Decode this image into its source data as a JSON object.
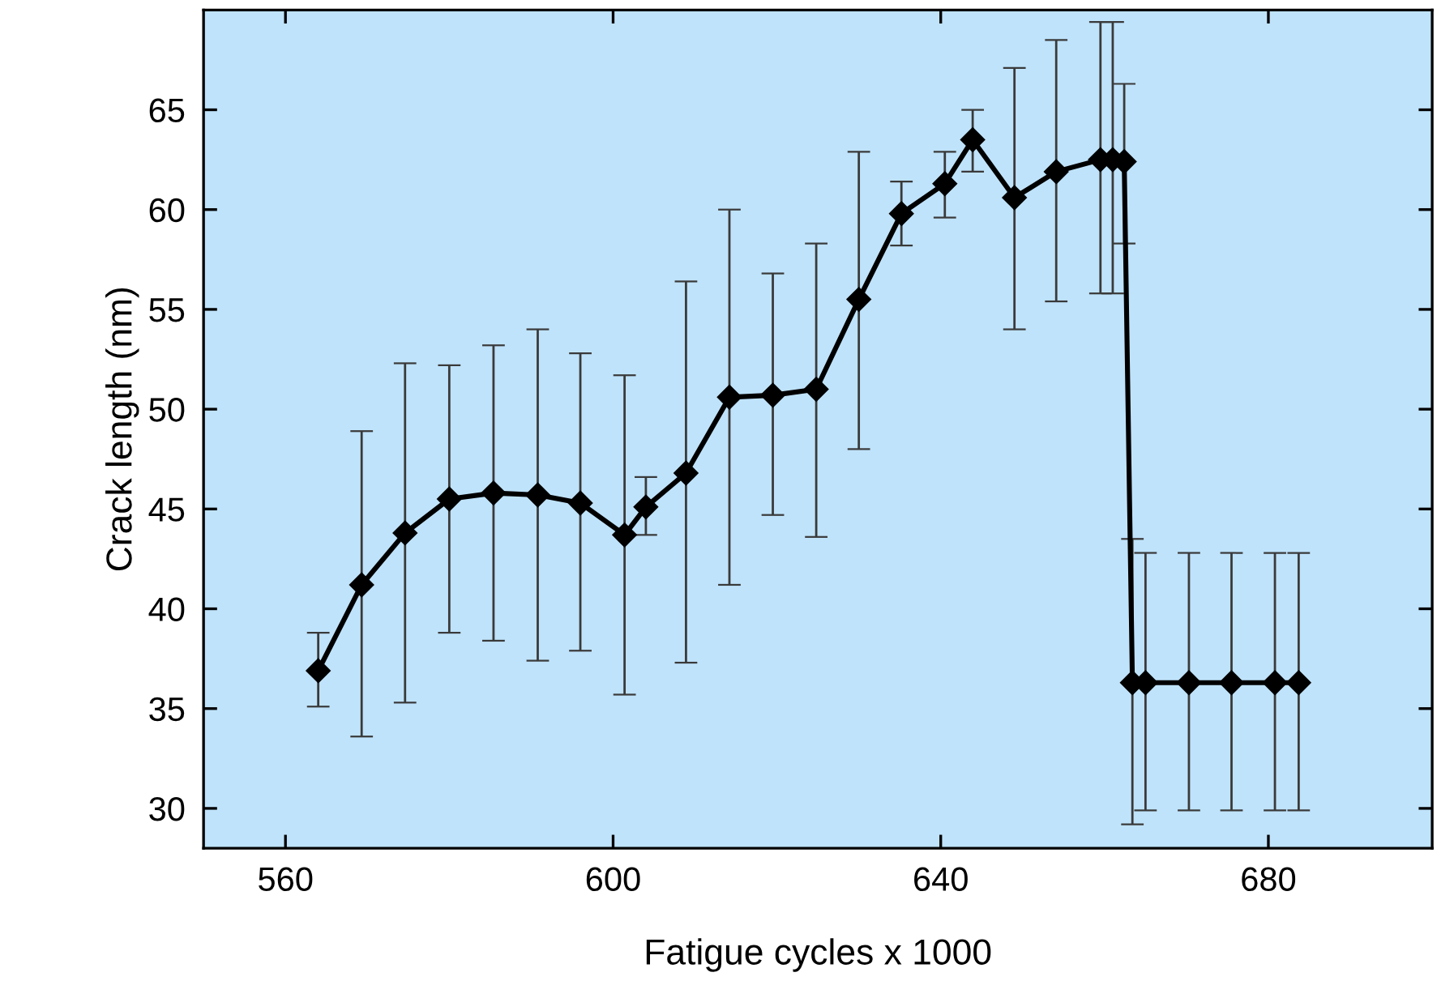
{
  "chart_data": {
    "type": "line",
    "xlabel": "Fatigue cycles x 1000",
    "ylabel": "Crack length (nm)",
    "xlim": [
      550,
      700
    ],
    "xticks": [
      560,
      600,
      640,
      680
    ],
    "ylim": [
      28,
      70
    ],
    "yticks": [
      30,
      35,
      40,
      45,
      50,
      55,
      60,
      65
    ],
    "grid": false,
    "legend": false,
    "marker": "diamond",
    "line_style": "solid",
    "series": [
      {
        "color": "#000000",
        "x": [
          564.0,
          569.3,
          574.6,
          580.0,
          585.4,
          590.8,
          596.0,
          601.4,
          604.0,
          608.9,
          614.2,
          619.5,
          624.8,
          630.0,
          635.2,
          640.5,
          643.9,
          649.0,
          654.1,
          659.5,
          661.0,
          662.4,
          663.4,
          665.0,
          670.3,
          675.5,
          680.8,
          683.7
        ],
        "values": [
          36.9,
          41.2,
          43.8,
          45.5,
          45.8,
          45.7,
          45.3,
          43.7,
          45.1,
          46.8,
          50.6,
          50.7,
          51.0,
          55.5,
          59.8,
          61.3,
          63.5,
          60.6,
          61.9,
          62.5,
          62.5,
          62.4,
          36.3,
          36.3,
          36.3,
          36.3,
          36.3,
          36.3
        ],
        "errors": [
          [
            35.1,
            38.8
          ],
          [
            33.6,
            48.9
          ],
          [
            35.3,
            52.3
          ],
          [
            38.8,
            52.2
          ],
          [
            38.4,
            53.2
          ],
          [
            37.4,
            54.0
          ],
          [
            37.9,
            52.8
          ],
          [
            35.7,
            51.7
          ],
          [
            43.7,
            46.6
          ],
          [
            37.3,
            56.4
          ],
          [
            41.2,
            60.0
          ],
          [
            44.7,
            56.8
          ],
          [
            43.6,
            58.3
          ],
          [
            48.0,
            62.9
          ],
          [
            58.2,
            61.4
          ],
          [
            59.6,
            62.9
          ],
          [
            61.9,
            65.0
          ],
          [
            54.0,
            67.1
          ],
          [
            55.4,
            68.5
          ],
          [
            55.8,
            69.4
          ],
          [
            55.8,
            69.4
          ],
          [
            58.3,
            66.3
          ],
          [
            29.2,
            43.5
          ],
          [
            29.9,
            42.8
          ],
          [
            29.9,
            42.8
          ],
          [
            29.9,
            42.8
          ],
          [
            29.9,
            42.8
          ],
          [
            29.9,
            42.8
          ]
        ]
      }
    ]
  }
}
